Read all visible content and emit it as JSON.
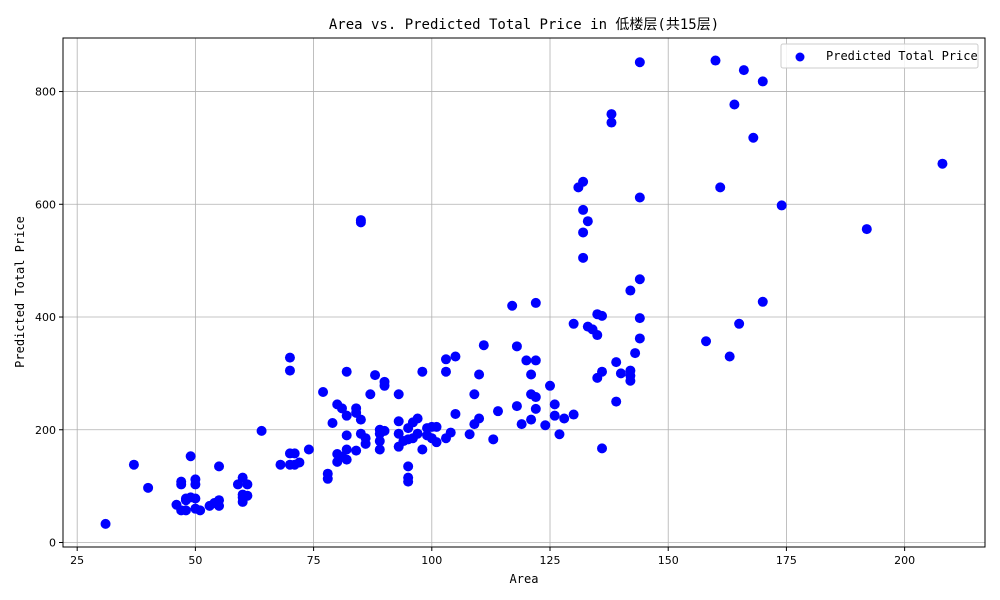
{
  "chart_data": {
    "type": "scatter",
    "title": "Area vs. Predicted Total Price in 低楼层(共15层)",
    "xlabel": "Area",
    "ylabel": "Predicted Total Price",
    "xlim": [
      22,
      217
    ],
    "ylim": [
      -8,
      895
    ],
    "xticks": [
      25,
      50,
      75,
      100,
      125,
      150,
      175,
      200
    ],
    "yticks": [
      0,
      200,
      400,
      600,
      800
    ],
    "grid": true,
    "legend": {
      "placement": "top-right",
      "entries": [
        "Predicted Total Price"
      ]
    },
    "series": [
      {
        "name": "Predicted Total Price",
        "color": "#0000ff",
        "points": [
          [
            31,
            33
          ],
          [
            37,
            138
          ],
          [
            40,
            97
          ],
          [
            46,
            67
          ],
          [
            47,
            57
          ],
          [
            47,
            103
          ],
          [
            47,
            108
          ],
          [
            48,
            75
          ],
          [
            48,
            57
          ],
          [
            48,
            78
          ],
          [
            49,
            153
          ],
          [
            49,
            80
          ],
          [
            50,
            78
          ],
          [
            50,
            60
          ],
          [
            50,
            103
          ],
          [
            50,
            112
          ],
          [
            51,
            57
          ],
          [
            53,
            65
          ],
          [
            54,
            70
          ],
          [
            55,
            135
          ],
          [
            55,
            75
          ],
          [
            55,
            65
          ],
          [
            59,
            103
          ],
          [
            60,
            85
          ],
          [
            60,
            115
          ],
          [
            60,
            72
          ],
          [
            60,
            80
          ],
          [
            61,
            83
          ],
          [
            61,
            103
          ],
          [
            64,
            198
          ],
          [
            68,
            138
          ],
          [
            70,
            328
          ],
          [
            70,
            305
          ],
          [
            70,
            158
          ],
          [
            70,
            138
          ],
          [
            71,
            158
          ],
          [
            71,
            138
          ],
          [
            72,
            142
          ],
          [
            74,
            165
          ],
          [
            77,
            267
          ],
          [
            78,
            122
          ],
          [
            78,
            113
          ],
          [
            79,
            212
          ],
          [
            80,
            143
          ],
          [
            80,
            157
          ],
          [
            80,
            245
          ],
          [
            81,
            238
          ],
          [
            81,
            152
          ],
          [
            82,
            303
          ],
          [
            82,
            225
          ],
          [
            82,
            190
          ],
          [
            82,
            165
          ],
          [
            82,
            147
          ],
          [
            84,
            238
          ],
          [
            84,
            230
          ],
          [
            84,
            163
          ],
          [
            85,
            568
          ],
          [
            85,
            572
          ],
          [
            85,
            218
          ],
          [
            85,
            193
          ],
          [
            86,
            185
          ],
          [
            86,
            175
          ],
          [
            87,
            263
          ],
          [
            88,
            297
          ],
          [
            89,
            200
          ],
          [
            89,
            193
          ],
          [
            89,
            180
          ],
          [
            89,
            165
          ],
          [
            90,
            285
          ],
          [
            90,
            278
          ],
          [
            90,
            198
          ],
          [
            93,
            263
          ],
          [
            93,
            215
          ],
          [
            93,
            193
          ],
          [
            93,
            170
          ],
          [
            94,
            180
          ],
          [
            95,
            115
          ],
          [
            95,
            108
          ],
          [
            95,
            135
          ],
          [
            95,
            183
          ],
          [
            95,
            203
          ],
          [
            96,
            213
          ],
          [
            96,
            185
          ],
          [
            97,
            220
          ],
          [
            97,
            193
          ],
          [
            98,
            303
          ],
          [
            98,
            165
          ],
          [
            99,
            203
          ],
          [
            99,
            190
          ],
          [
            100,
            185
          ],
          [
            100,
            205
          ],
          [
            101,
            178
          ],
          [
            101,
            205
          ],
          [
            103,
            185
          ],
          [
            103,
            325
          ],
          [
            103,
            303
          ],
          [
            104,
            195
          ],
          [
            105,
            330
          ],
          [
            105,
            228
          ],
          [
            108,
            192
          ],
          [
            109,
            263
          ],
          [
            109,
            210
          ],
          [
            110,
            220
          ],
          [
            110,
            298
          ],
          [
            111,
            350
          ],
          [
            113,
            183
          ],
          [
            114,
            233
          ],
          [
            117,
            420
          ],
          [
            118,
            242
          ],
          [
            118,
            348
          ],
          [
            119,
            210
          ],
          [
            120,
            323
          ],
          [
            121,
            298
          ],
          [
            121,
            218
          ],
          [
            121,
            263
          ],
          [
            122,
            258
          ],
          [
            122,
            323
          ],
          [
            122,
            425
          ],
          [
            122,
            237
          ],
          [
            124,
            208
          ],
          [
            125,
            278
          ],
          [
            126,
            225
          ],
          [
            126,
            245
          ],
          [
            127,
            192
          ],
          [
            128,
            220
          ],
          [
            130,
            388
          ],
          [
            130,
            227
          ],
          [
            131,
            630
          ],
          [
            132,
            640
          ],
          [
            132,
            590
          ],
          [
            132,
            550
          ],
          [
            132,
            505
          ],
          [
            133,
            570
          ],
          [
            133,
            383
          ],
          [
            134,
            378
          ],
          [
            135,
            368
          ],
          [
            135,
            405
          ],
          [
            135,
            292
          ],
          [
            136,
            303
          ],
          [
            136,
            167
          ],
          [
            136,
            402
          ],
          [
            138,
            760
          ],
          [
            138,
            745
          ],
          [
            139,
            250
          ],
          [
            139,
            320
          ],
          [
            140,
            300
          ],
          [
            142,
            305
          ],
          [
            142,
            296
          ],
          [
            142,
            287
          ],
          [
            142,
            447
          ],
          [
            143,
            336
          ],
          [
            144,
            852
          ],
          [
            144,
            612
          ],
          [
            144,
            467
          ],
          [
            144,
            362
          ],
          [
            144,
            398
          ],
          [
            158,
            357
          ],
          [
            160,
            855
          ],
          [
            161,
            630
          ],
          [
            163,
            330
          ],
          [
            164,
            777
          ],
          [
            165,
            388
          ],
          [
            166,
            838
          ],
          [
            168,
            718
          ],
          [
            170,
            818
          ],
          [
            170,
            427
          ],
          [
            174,
            598
          ],
          [
            192,
            556
          ],
          [
            208,
            672
          ]
        ]
      }
    ]
  }
}
